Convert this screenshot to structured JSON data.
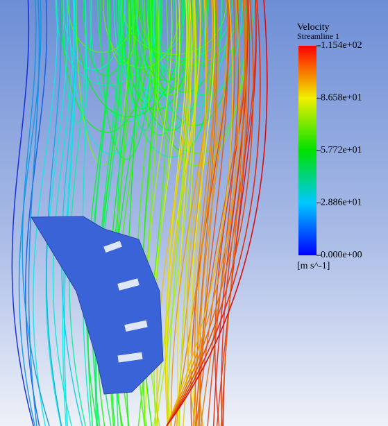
{
  "legend": {
    "title": "Velocity",
    "subtitle": "Streamline 1",
    "range": [
      0,
      115.4
    ],
    "ticks": [
      {
        "value": 115.4,
        "label": "1.154e+02"
      },
      {
        "value": 86.58,
        "label": "8.658e+01"
      },
      {
        "value": 57.72,
        "label": "5.772e+01"
      },
      {
        "value": 28.86,
        "label": "2.886e+01"
      },
      {
        "value": 0,
        "label": "0.000e+00"
      }
    ],
    "unit": "[m s^-1]"
  }
}
